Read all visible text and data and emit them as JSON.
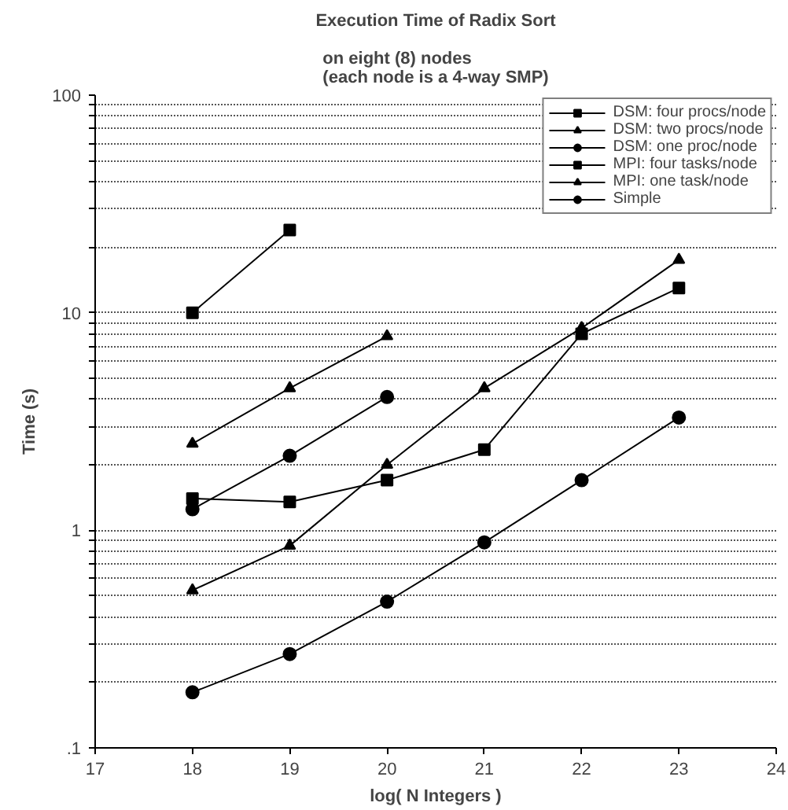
{
  "chart_data": {
    "type": "line",
    "title": "Execution Time of Radix Sort",
    "subtitle": "on eight (8) nodes\n(each node is a 4-way SMP)",
    "xlabel": "log( N Integers )",
    "ylabel": "Time (s)",
    "x": [
      18,
      19,
      20,
      21,
      22,
      23
    ],
    "series": [
      {
        "name": "DSM: four procs/node",
        "color": "#000000",
        "marker": "square",
        "values": [
          10,
          24,
          null,
          null,
          null,
          null
        ]
      },
      {
        "name": "DSM: two procs/node",
        "color": "#000000",
        "marker": "triangle",
        "values": [
          2.5,
          4.5,
          7.8,
          null,
          null,
          null
        ]
      },
      {
        "name": "DSM: one proc/node",
        "color": "#000000",
        "marker": "circle",
        "values": [
          1.25,
          2.2,
          4.1,
          null,
          null,
          null
        ]
      },
      {
        "name": "MPI: four tasks/node",
        "color": "#000000",
        "marker": "square",
        "values": [
          1.4,
          1.35,
          1.7,
          2.35,
          8.0,
          13
        ]
      },
      {
        "name": "MPI: one task/node",
        "color": "#000000",
        "marker": "triangle",
        "values": [
          0.53,
          0.85,
          2.0,
          4.5,
          8.5,
          17.5
        ]
      },
      {
        "name": "Simple",
        "color": "#000000",
        "marker": "circle",
        "values": [
          0.18,
          0.27,
          0.47,
          0.88,
          1.7,
          3.3
        ]
      }
    ],
    "log": "y",
    "grid": "y",
    "legend": "top right",
    "line_style": "solid",
    "xlim": [
      17,
      24
    ],
    "xticks": [
      17,
      18,
      19,
      20,
      21,
      22,
      23,
      24
    ],
    "ylim": [
      0.1,
      100
    ],
    "yticks": [
      {
        "value": 0.1,
        "label": ".1"
      },
      {
        "value": 0.2,
        "label": null
      },
      {
        "value": 0.3,
        "label": null
      },
      {
        "value": 0.4,
        "label": null
      },
      {
        "value": 0.5,
        "label": null
      },
      {
        "value": 0.6,
        "label": null
      },
      {
        "value": 0.7,
        "label": null
      },
      {
        "value": 0.8,
        "label": null
      },
      {
        "value": 0.9,
        "label": null
      },
      1,
      {
        "value": 2,
        "label": null
      },
      {
        "value": 3,
        "label": null
      },
      {
        "value": 4,
        "label": null
      },
      {
        "value": 5,
        "label": null
      },
      {
        "value": 6,
        "label": null
      },
      {
        "value": 7,
        "label": null
      },
      {
        "value": 8,
        "label": null
      },
      {
        "value": 9,
        "label": null
      },
      10,
      {
        "value": 20,
        "label": null
      },
      {
        "value": 30,
        "label": null
      },
      {
        "value": 40,
        "label": null
      },
      {
        "value": 50,
        "label": null
      },
      {
        "value": 60,
        "label": null
      },
      {
        "value": 70,
        "label": null
      },
      {
        "value": 80,
        "label": null
      },
      {
        "value": 90,
        "label": null
      },
      100
    ]
  }
}
